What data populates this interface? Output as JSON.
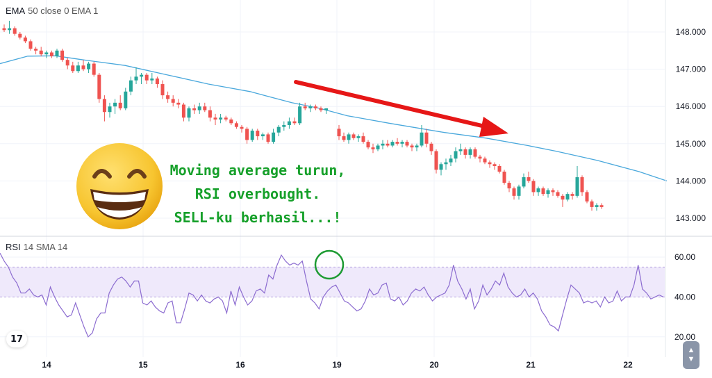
{
  "price_legend": {
    "name": "EMA",
    "params": "50 close 0 EMA 1"
  },
  "rsi_legend": {
    "name": "RSI",
    "params": "14 SMA 14"
  },
  "caption": [
    "Moving average turun,",
    "RSI overbought.",
    "SELL-ku berhasil...!"
  ],
  "emoji": "grinning-face-with-smiling-eyes",
  "annotations": {
    "arrow": "red trend-down arrow",
    "circle": "green circle on RSI peak"
  },
  "colors": {
    "up": "#26a69a",
    "down": "#ef5350",
    "ema": "#4aa8dc",
    "rsi": "#8c6cd0",
    "rsi_band": "#efe9fb",
    "arrow": "#e61717",
    "caption": "#16a02a",
    "circle": "#1e9b33"
  },
  "tv_logo": "17",
  "chart_data": [
    {
      "type": "candlestick",
      "title": "",
      "x_tick_labels": [
        "14",
        "15",
        "16",
        "19",
        "20",
        "21",
        "22"
      ],
      "y_tick_labels": [
        "148.000",
        "147.000",
        "146.000",
        "145.000",
        "144.000",
        "143.000"
      ],
      "ylim": [
        142.9,
        148.3
      ],
      "grid": true,
      "series": [
        {
          "name": "EMA",
          "type": "line",
          "points": [
            [
              0,
              147.15
            ],
            [
              40,
              147.35
            ],
            [
              80,
              147.36
            ],
            [
              120,
              147.25
            ],
            [
              180,
              147.1
            ],
            [
              240,
              146.85
            ],
            [
              300,
              146.6
            ],
            [
              360,
              146.4
            ],
            [
              420,
              146.1
            ],
            [
              460,
              145.95
            ],
            [
              500,
              145.75
            ],
            [
              560,
              145.55
            ],
            [
              640,
              145.3
            ],
            [
              700,
              145.15
            ],
            [
              760,
              144.95
            ],
            [
              800,
              144.8
            ],
            [
              860,
              144.55
            ],
            [
              920,
              144.25
            ],
            [
              960,
              144.0
            ]
          ]
        },
        {
          "name": "",
          "type": "candles",
          "ohlc": [
            [
              148.1,
              148.2,
              148.0,
              148.05
            ],
            [
              148.05,
              148.3,
              147.95,
              148.1
            ],
            [
              148.1,
              148.15,
              147.9,
              147.95
            ],
            [
              147.95,
              148.0,
              147.8,
              147.85
            ],
            [
              147.85,
              147.9,
              147.7,
              147.75
            ],
            [
              147.75,
              147.8,
              147.5,
              147.55
            ],
            [
              147.55,
              147.6,
              147.4,
              147.5
            ],
            [
              147.5,
              147.6,
              147.35,
              147.4
            ],
            [
              147.4,
              147.5,
              147.3,
              147.45
            ],
            [
              147.45,
              147.5,
              147.3,
              147.35
            ],
            [
              147.35,
              147.55,
              147.3,
              147.5
            ],
            [
              147.5,
              147.55,
              147.2,
              147.25
            ],
            [
              147.25,
              147.3,
              147.0,
              147.1
            ],
            [
              147.1,
              147.2,
              146.9,
              146.95
            ],
            [
              146.95,
              147.2,
              146.9,
              147.1
            ],
            [
              147.1,
              147.25,
              146.95,
              147.0
            ],
            [
              147.0,
              147.2,
              146.9,
              147.15
            ],
            [
              147.15,
              147.2,
              146.8,
              146.85
            ],
            [
              146.85,
              146.9,
              146.1,
              146.2
            ],
            [
              146.2,
              146.3,
              145.6,
              145.85
            ],
            [
              145.85,
              146.1,
              145.7,
              146.0
            ],
            [
              146.0,
              146.2,
              145.8,
              146.1
            ],
            [
              146.1,
              146.3,
              145.9,
              145.95
            ],
            [
              145.95,
              146.5,
              145.9,
              146.4
            ],
            [
              146.4,
              146.8,
              146.3,
              146.7
            ],
            [
              146.7,
              147.05,
              146.6,
              146.8
            ],
            [
              146.8,
              146.9,
              146.6,
              146.85
            ],
            [
              146.85,
              146.9,
              146.6,
              146.7
            ],
            [
              146.7,
              146.9,
              146.6,
              146.75
            ],
            [
              146.75,
              146.8,
              146.5,
              146.6
            ],
            [
              146.6,
              146.7,
              146.2,
              146.3
            ],
            [
              146.3,
              146.4,
              146.1,
              146.2
            ],
            [
              146.2,
              146.3,
              146.0,
              146.1
            ],
            [
              146.1,
              146.2,
              145.95,
              146.05
            ],
            [
              146.05,
              146.1,
              145.6,
              145.7
            ],
            [
              145.7,
              146.0,
              145.6,
              145.95
            ],
            [
              145.95,
              146.05,
              145.8,
              145.9
            ],
            [
              145.9,
              146.1,
              145.8,
              146.0
            ],
            [
              146.0,
              146.1,
              145.85,
              145.9
            ],
            [
              145.9,
              146.0,
              145.6,
              145.7
            ],
            [
              145.7,
              145.8,
              145.5,
              145.65
            ],
            [
              145.65,
              145.8,
              145.55,
              145.7
            ],
            [
              145.7,
              145.75,
              145.6,
              145.65
            ],
            [
              145.65,
              145.7,
              145.5,
              145.55
            ],
            [
              145.55,
              145.6,
              145.4,
              145.45
            ],
            [
              145.45,
              145.5,
              145.3,
              145.4
            ],
            [
              145.4,
              145.45,
              145.0,
              145.1
            ],
            [
              145.1,
              145.4,
              145.05,
              145.35
            ],
            [
              145.35,
              145.4,
              145.1,
              145.2
            ],
            [
              145.2,
              145.3,
              145.1,
              145.25
            ],
            [
              145.25,
              145.3,
              145.0,
              145.05
            ],
            [
              145.05,
              145.4,
              145.0,
              145.3
            ],
            [
              145.3,
              145.5,
              145.2,
              145.45
            ],
            [
              145.45,
              145.6,
              145.35,
              145.5
            ],
            [
              145.5,
              145.7,
              145.4,
              145.6
            ],
            [
              145.6,
              145.7,
              145.5,
              145.55
            ],
            [
              145.55,
              146.1,
              145.5,
              146.0
            ],
            [
              146.0,
              146.1,
              145.9,
              145.95
            ],
            [
              145.95,
              146.05,
              145.85,
              146.0
            ],
            [
              146.0,
              146.05,
              145.9,
              145.95
            ],
            [
              145.95,
              146.0,
              145.85,
              145.9
            ],
            [
              145.9,
              145.95,
              145.8,
              145.95
            ],
            [
              145.4,
              145.5,
              145.1,
              145.2
            ],
            [
              145.2,
              145.3,
              145.05,
              145.1
            ],
            [
              145.1,
              145.3,
              145.0,
              145.25
            ],
            [
              145.25,
              145.3,
              145.1,
              145.15
            ],
            [
              145.15,
              145.25,
              145.05,
              145.2
            ],
            [
              145.2,
              145.3,
              145.0,
              145.05
            ],
            [
              145.05,
              145.1,
              144.85,
              144.9
            ],
            [
              144.9,
              145.0,
              144.75,
              144.85
            ],
            [
              144.85,
              145.0,
              144.8,
              144.95
            ],
            [
              144.95,
              145.1,
              144.85,
              145.0
            ],
            [
              145.0,
              145.1,
              144.9,
              144.95
            ],
            [
              144.95,
              145.1,
              144.9,
              145.05
            ],
            [
              145.05,
              145.15,
              144.95,
              145.0
            ],
            [
              145.0,
              145.1,
              144.9,
              145.05
            ],
            [
              145.05,
              145.1,
              144.9,
              144.95
            ],
            [
              144.95,
              145.0,
              144.8,
              144.9
            ],
            [
              144.9,
              145.0,
              144.8,
              144.95
            ],
            [
              144.95,
              145.5,
              144.9,
              145.3
            ],
            [
              145.3,
              145.4,
              144.9,
              145.0
            ],
            [
              145.0,
              145.05,
              144.7,
              144.8
            ],
            [
              144.8,
              144.85,
              144.2,
              144.3
            ],
            [
              144.3,
              144.5,
              144.15,
              144.45
            ],
            [
              144.45,
              144.6,
              144.3,
              144.5
            ],
            [
              144.5,
              144.7,
              144.4,
              144.6
            ],
            [
              144.6,
              144.9,
              144.5,
              144.8
            ],
            [
              144.8,
              145.0,
              144.7,
              144.85
            ],
            [
              144.85,
              144.9,
              144.6,
              144.7
            ],
            [
              144.7,
              144.9,
              144.6,
              144.85
            ],
            [
              144.85,
              144.9,
              144.6,
              144.65
            ],
            [
              144.65,
              144.7,
              144.5,
              144.6
            ],
            [
              144.6,
              144.65,
              144.45,
              144.5
            ],
            [
              144.5,
              144.55,
              144.35,
              144.45
            ],
            [
              144.45,
              144.5,
              144.3,
              144.4
            ],
            [
              144.4,
              144.45,
              144.2,
              144.25
            ],
            [
              144.25,
              144.3,
              143.9,
              143.95
            ],
            [
              143.95,
              144.0,
              143.7,
              143.8
            ],
            [
              143.8,
              143.85,
              143.5,
              143.6
            ],
            [
              143.6,
              143.9,
              143.5,
              143.85
            ],
            [
              143.85,
              144.2,
              143.8,
              144.1
            ],
            [
              144.1,
              144.25,
              143.95,
              144.0
            ],
            [
              144.0,
              144.05,
              143.6,
              143.7
            ],
            [
              143.7,
              143.85,
              143.6,
              143.8
            ],
            [
              143.8,
              143.85,
              143.6,
              143.65
            ],
            [
              143.65,
              143.8,
              143.55,
              143.75
            ],
            [
              143.75,
              143.8,
              143.6,
              143.7
            ],
            [
              143.7,
              143.75,
              143.55,
              143.6
            ],
            [
              143.6,
              143.65,
              143.3,
              143.5
            ],
            [
              143.5,
              143.7,
              143.45,
              143.65
            ],
            [
              143.65,
              143.7,
              143.5,
              143.6
            ],
            [
              143.6,
              144.4,
              143.55,
              144.1
            ],
            [
              144.1,
              144.15,
              143.6,
              143.7
            ],
            [
              143.7,
              143.75,
              143.4,
              143.45
            ],
            [
              143.45,
              143.5,
              143.2,
              143.3
            ],
            [
              143.3,
              143.4,
              143.2,
              143.35
            ],
            [
              143.35,
              143.4,
              143.25,
              143.3
            ]
          ]
        }
      ]
    },
    {
      "type": "line",
      "title": "",
      "y_tick_labels": [
        "60.00",
        "40.00",
        "20.00"
      ],
      "ylim": [
        13,
        64
      ],
      "band": [
        40,
        55
      ],
      "series": [
        {
          "name": "RSI",
          "values": [
            62,
            58,
            55,
            50,
            47,
            42,
            42,
            44,
            41,
            40,
            41,
            36,
            45,
            40,
            36,
            33,
            30,
            31,
            37,
            31,
            25,
            20,
            22,
            29,
            32,
            32,
            42,
            46,
            49,
            50,
            48,
            45,
            48,
            48,
            37,
            36,
            38,
            35,
            33,
            32,
            37,
            38,
            27,
            27,
            34,
            42,
            41,
            38,
            41,
            38,
            37,
            39,
            40,
            38,
            32,
            43,
            36,
            45,
            40,
            36,
            38,
            43,
            44,
            42,
            51,
            49,
            56,
            61,
            58,
            56,
            57,
            56,
            58,
            48,
            39,
            37,
            34,
            40,
            43,
            45,
            46,
            42,
            38,
            37,
            35,
            33,
            34,
            38,
            44,
            41,
            42,
            46,
            47,
            39,
            38,
            40,
            36,
            38,
            42,
            44,
            43,
            45,
            41,
            38,
            40,
            41,
            42,
            46,
            56,
            48,
            44,
            39,
            44,
            34,
            38,
            46,
            41,
            44,
            48,
            46,
            52,
            45,
            42,
            40,
            41,
            44,
            40,
            42,
            39,
            33,
            30,
            26,
            25,
            23,
            31,
            39,
            46,
            44,
            42,
            37,
            38,
            37,
            38,
            35,
            40,
            37,
            38,
            43,
            38,
            40,
            40,
            46,
            56,
            44,
            42,
            39,
            40,
            41,
            40
          ]
        }
      ]
    }
  ]
}
